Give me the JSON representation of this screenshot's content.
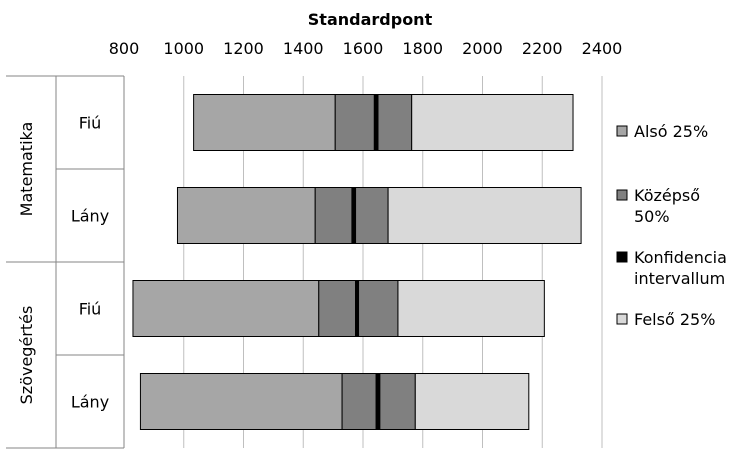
{
  "chart_data": {
    "type": "bar",
    "subtype": "stacked-horizontal",
    "xlabel": "Standardpont",
    "xlim": [
      800,
      2400
    ],
    "xticks": [
      800,
      1000,
      1200,
      1400,
      1600,
      1800,
      2000,
      2200,
      2400
    ],
    "xaxis_position": "top",
    "grid": "vertical",
    "legend_position": "right",
    "groups": [
      {
        "label": "Matematika",
        "rows": [
          "Fiú",
          "Lány"
        ]
      },
      {
        "label": "Szövegértés",
        "rows": [
          "Fiú",
          "Lány"
        ]
      }
    ],
    "rows": [
      {
        "group": "Matematika",
        "label": "Fiú",
        "start": 1033,
        "q1": 1507,
        "ci_low": 1638,
        "ci_high": 1650,
        "q3": 1763,
        "end": 2303
      },
      {
        "group": "Matematika",
        "label": "Lány",
        "start": 979,
        "q1": 1440,
        "ci_low": 1563,
        "ci_high": 1575,
        "q3": 1684,
        "end": 2330
      },
      {
        "group": "Szövegértés",
        "label": "Fiú",
        "start": 830,
        "q1": 1452,
        "ci_low": 1575,
        "ci_high": 1585,
        "q3": 1717,
        "end": 2207
      },
      {
        "group": "Szövegértés",
        "label": "Lány",
        "start": 855,
        "q1": 1530,
        "ci_low": 1644,
        "ci_high": 1656,
        "q3": 1775,
        "end": 2155
      }
    ],
    "series": [
      {
        "name": "Alsó 25%",
        "color": "#a6a6a6"
      },
      {
        "name": "Középső 50%",
        "color": "#808080"
      },
      {
        "name": "Konfidencia intervallum",
        "color": "#000000"
      },
      {
        "name": "Felső 25%",
        "color": "#d9d9d9"
      }
    ]
  }
}
